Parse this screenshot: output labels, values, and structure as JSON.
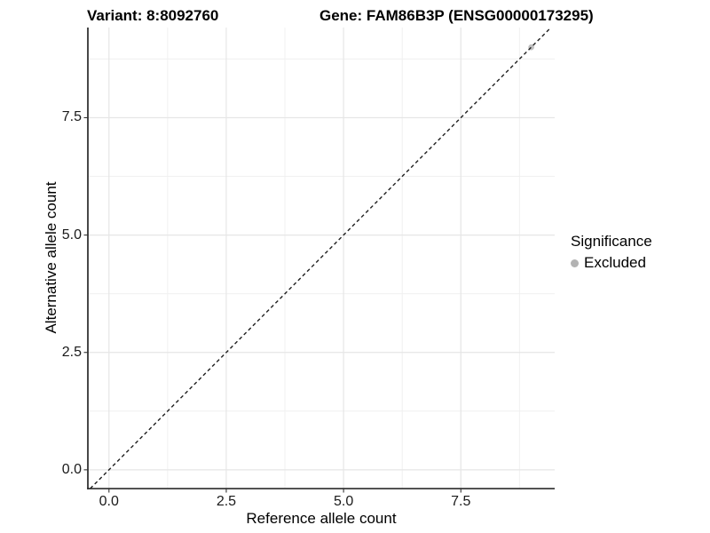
{
  "page": {
    "background": "#ffffff"
  },
  "titles": {
    "variant": "Variant: 8:8092760",
    "gene": "Gene: FAM86B3P (ENSG00000173295)"
  },
  "legend": {
    "title": "Significance",
    "items": [
      {
        "label": "Excluded",
        "color": "#b3b3b3"
      }
    ]
  },
  "chart_data": {
    "type": "scatter",
    "title": "Variant: 8:8092760  |  Gene: FAM86B3P (ENSG00000173295)",
    "xlabel": "Reference allele count",
    "ylabel": "Alternative allele count",
    "xlim": [
      -0.45,
      9.5
    ],
    "ylim": [
      -0.4,
      9.42
    ],
    "x_ticks": [
      0.0,
      2.5,
      5.0,
      7.5
    ],
    "y_ticks": [
      0.0,
      2.5,
      5.0,
      7.5
    ],
    "x_tick_labels": [
      "0.0",
      "2.5",
      "5.0",
      "7.5"
    ],
    "y_tick_labels": [
      "0.0",
      "2.5",
      "5.0",
      "7.5"
    ],
    "x_minor": [
      1.25,
      3.75,
      6.25,
      8.75
    ],
    "y_minor": [
      1.25,
      3.75,
      6.25,
      8.75
    ],
    "grid": true,
    "legend_position": "right",
    "series": [
      {
        "name": "Excluded",
        "color": "#c0c0c0",
        "points": [
          [
            9,
            9
          ]
        ],
        "point_radius": 3.3
      }
    ],
    "identity_line": {
      "style": "dashed",
      "slope": 1,
      "intercept": 0,
      "x1": -0.4,
      "y1": -0.4,
      "x2": 9.42,
      "y2": 9.42
    },
    "colors": {
      "grid_major": "#e6e6e6",
      "grid_minor": "#f0f0f0",
      "axis_line": "#1a1a1a",
      "tick_mark": "#333333",
      "dashed_line": "#1f1f1f",
      "tick_text": "#1a1a1a"
    }
  }
}
